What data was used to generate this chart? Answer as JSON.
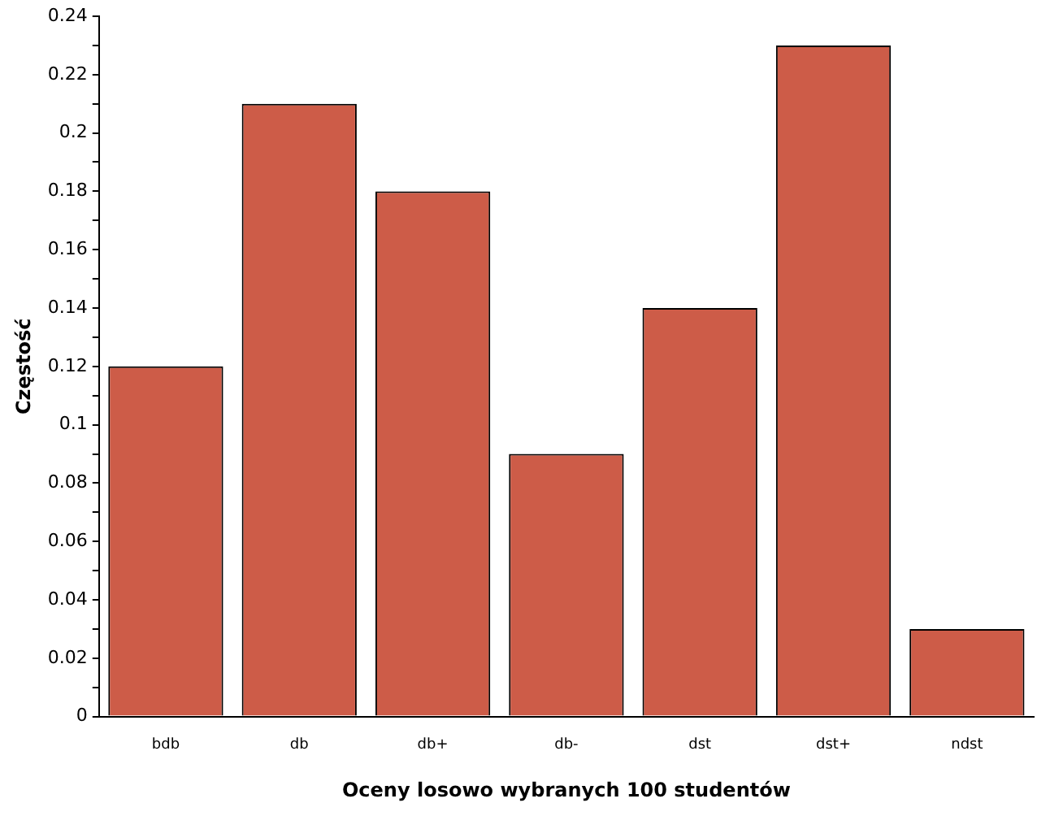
{
  "chart_data": {
    "type": "bar",
    "xlabel": "Oceny losowo wybranych 100 studentów",
    "ylabel": "Częstość",
    "categories": [
      "bdb",
      "db",
      "db+",
      "db-",
      "dst",
      "dst+",
      "ndst"
    ],
    "values": [
      0.12,
      0.21,
      0.18,
      0.09,
      0.14,
      0.23,
      0.03
    ],
    "color": "#cd5c48",
    "ylim": [
      0,
      0.24
    ],
    "yticks": [
      0,
      {
        "value": 0.01,
        "label": null
      },
      0.02,
      {
        "value": 0.03,
        "label": null
      },
      0.04,
      {
        "value": 0.05,
        "label": null
      },
      0.06,
      {
        "value": 0.07,
        "label": null
      },
      0.08,
      {
        "value": 0.09,
        "label": null
      },
      0.1,
      {
        "value": 0.11,
        "label": null
      },
      0.12,
      {
        "value": 0.13,
        "label": null
      },
      0.14,
      {
        "value": 0.15,
        "label": null
      },
      0.16,
      {
        "value": 0.17,
        "label": null
      },
      0.18,
      {
        "value": 0.19,
        "label": null
      },
      0.2,
      {
        "value": 0.21,
        "label": null
      },
      0.22,
      {
        "value": 0.23,
        "label": null
      },
      0.24
    ],
    "grid": false,
    "legend": false
  }
}
